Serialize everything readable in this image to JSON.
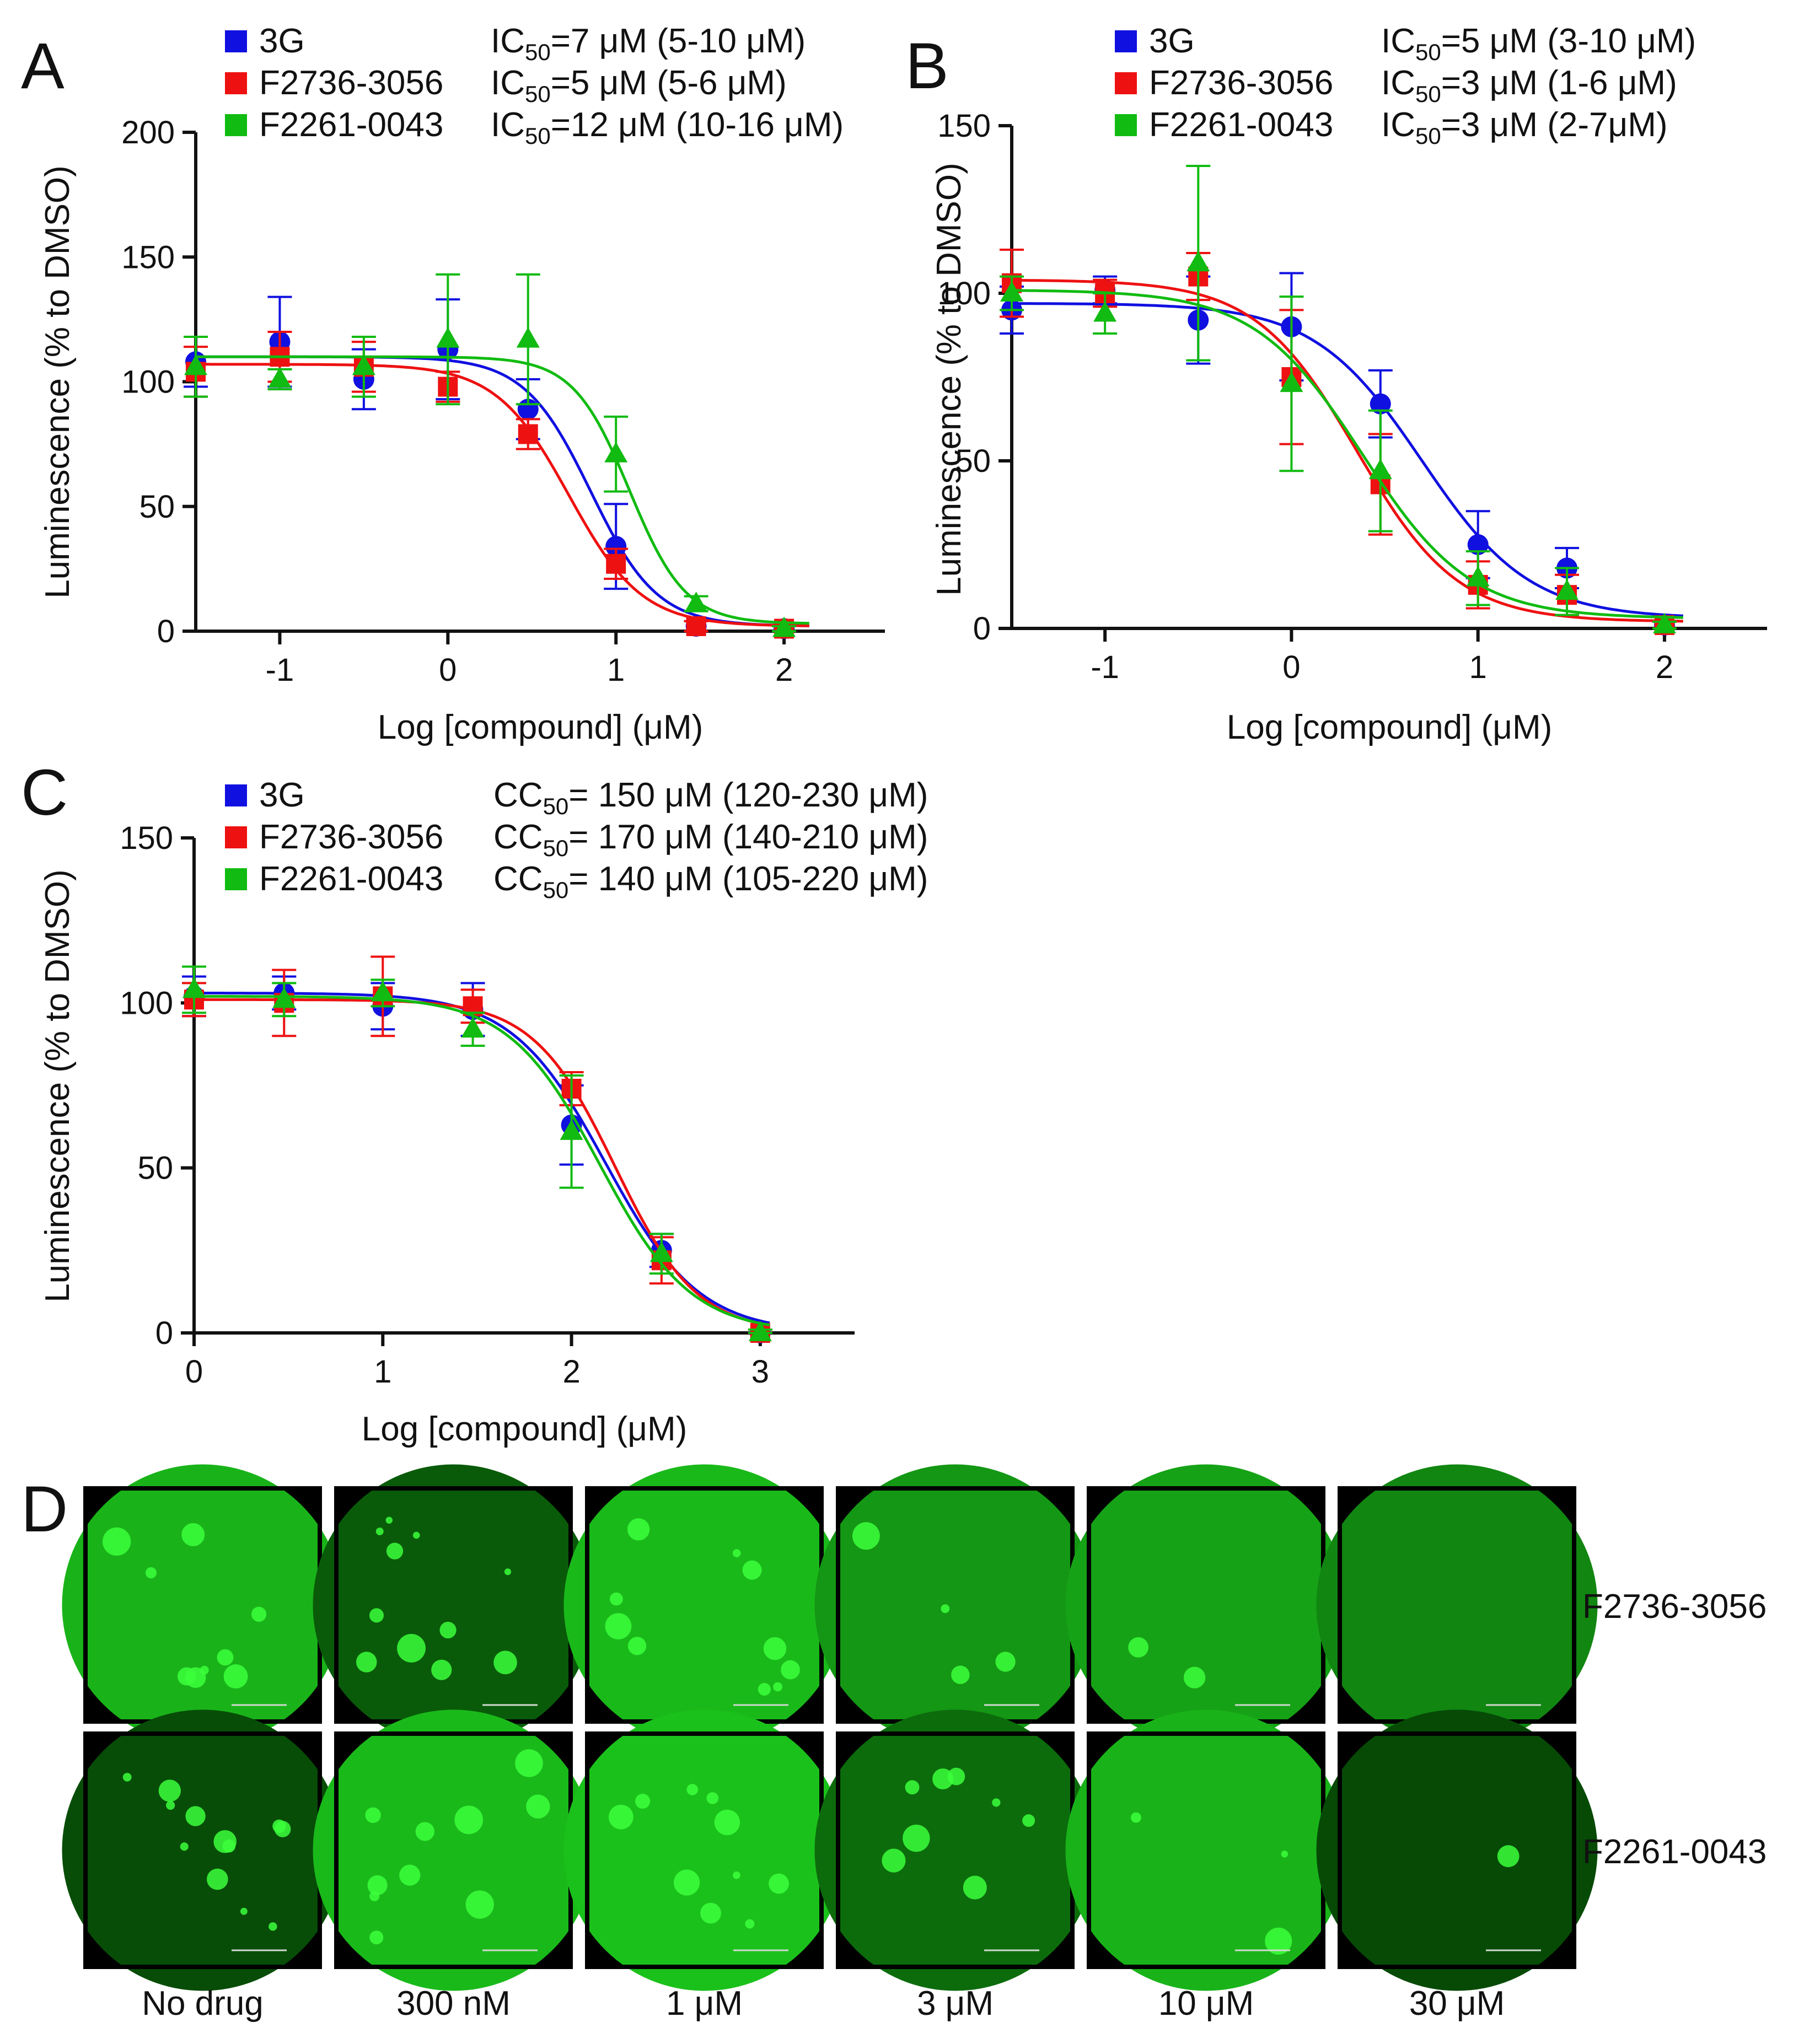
{
  "colors": {
    "3G": "#1010e0",
    "F2736-3056": "#ee1111",
    "F2261-0043": "#11bb11",
    "axis": "#111111"
  },
  "chart_data": [
    {
      "panel": "A",
      "type": "scatter",
      "xlabel": "Log [compound] (μM)",
      "ylabel": "Luminescence (% to DMSO)",
      "xlim": [
        -1.5,
        2.6
      ],
      "ylim": [
        0,
        200
      ],
      "xticks": [
        "-1",
        "0",
        "1",
        "2"
      ],
      "yticks": [
        "0",
        "50",
        "100",
        "150",
        "200"
      ],
      "grid": false,
      "legend_position": "top",
      "series": [
        {
          "name": "3G",
          "stat_label": "IC",
          "stat_sub": "50",
          "stat_value": "=7 μM (5-10 μM)",
          "marker": "circle",
          "curve": {
            "top": 110,
            "bottom": 2,
            "logEC50": 0.85,
            "hill": 2.2
          },
          "x": [
            -1.5,
            -1,
            -0.5,
            0,
            0.477,
            1,
            1.477,
            2
          ],
          "y": [
            108,
            116,
            101,
            113,
            89,
            34,
            2,
            1
          ],
          "err": [
            10,
            18,
            12,
            20,
            12,
            17,
            2,
            1
          ]
        },
        {
          "name": "F2736-3056",
          "stat_label": "IC",
          "stat_sub": "50",
          "stat_value": "=5 μM (5-6 μM)",
          "marker": "square",
          "curve": {
            "top": 107,
            "bottom": 2,
            "logEC50": 0.72,
            "hill": 2.0
          },
          "x": [
            -1.5,
            -1,
            -0.5,
            0,
            0.477,
            1,
            1.477,
            2
          ],
          "y": [
            104,
            110,
            106,
            98,
            79,
            27,
            2,
            1
          ],
          "err": [
            10,
            10,
            10,
            6,
            6,
            6,
            2,
            1
          ]
        },
        {
          "name": "F2261-0043",
          "stat_label": "IC",
          "stat_sub": "50",
          "stat_value": "=12 μM (10-16 μM)",
          "marker": "triangle",
          "curve": {
            "top": 110,
            "bottom": 3,
            "logEC50": 1.08,
            "hill": 2.6
          },
          "x": [
            -1.5,
            -1,
            -0.5,
            0,
            0.477,
            1,
            1.477,
            2
          ],
          "y": [
            106,
            101,
            106,
            117,
            117,
            71,
            11,
            1
          ],
          "err": [
            12,
            4,
            12,
            26,
            26,
            15,
            3,
            1
          ]
        }
      ]
    },
    {
      "panel": "B",
      "type": "scatter",
      "xlabel": "Log [compound] (μM)",
      "ylabel": "Luminescence (% to DMSO)",
      "xlim": [
        -1.5,
        2.55
      ],
      "ylim": [
        0,
        150
      ],
      "xticks": [
        "-1",
        "0",
        "1",
        "2"
      ],
      "yticks": [
        "0",
        "50",
        "100",
        "150"
      ],
      "grid": false,
      "legend_position": "top",
      "series": [
        {
          "name": "3G",
          "stat_label": "IC",
          "stat_sub": "50",
          "stat_value": "=5 μM (3-10 μM)",
          "marker": "circle",
          "curve": {
            "top": 97,
            "bottom": 3,
            "logEC50": 0.7,
            "hill": 1.5
          },
          "x": [
            -1.5,
            -1,
            -0.5,
            0,
            0.477,
            1,
            1.477,
            2
          ],
          "y": [
            95,
            101,
            92,
            90,
            67,
            25,
            18,
            1
          ],
          "err": [
            7,
            4,
            13,
            16,
            10,
            10,
            6,
            1
          ]
        },
        {
          "name": "F2736-3056",
          "stat_label": "IC",
          "stat_sub": "50",
          "stat_value": "=3 μM (1-6 μM)",
          "marker": "square",
          "curve": {
            "top": 104,
            "bottom": 2,
            "logEC50": 0.35,
            "hill": 1.6
          },
          "x": [
            -1.5,
            -1,
            -0.5,
            0,
            0.477,
            1,
            1.477,
            2
          ],
          "y": [
            103,
            100,
            105,
            75,
            43,
            13,
            10,
            1
          ],
          "err": [
            10,
            4,
            7,
            20,
            15,
            7,
            6,
            1
          ]
        },
        {
          "name": "F2261-0043",
          "stat_label": "IC",
          "stat_sub": "50",
          "stat_value": "=3 μM (2-7μM)",
          "marker": "triangle",
          "curve": {
            "top": 101,
            "bottom": 3,
            "logEC50": 0.38,
            "hill": 1.5
          },
          "x": [
            -1.5,
            -1,
            -0.5,
            0,
            0.477,
            1,
            1.477,
            2
          ],
          "y": [
            100,
            94,
            109,
            73,
            47,
            15,
            11,
            1
          ],
          "err": [
            5,
            6,
            29,
            26,
            18,
            8,
            7,
            1
          ]
        }
      ]
    },
    {
      "panel": "C",
      "type": "scatter",
      "xlabel": "Log [compound] (μM)",
      "ylabel": "Luminescence (% to DMSO)",
      "xlim": [
        0,
        3.5
      ],
      "ylim": [
        0,
        150
      ],
      "xticks": [
        "0",
        "1",
        "2",
        "3"
      ],
      "yticks": [
        "0",
        "50",
        "100",
        "150"
      ],
      "grid": false,
      "legend_position": "top",
      "series": [
        {
          "name": "3G",
          "stat_label": "CC",
          "stat_sub": "50",
          "stat_value": "= 150 μM (120-230 μM)",
          "marker": "circle",
          "curve": {
            "top": 103,
            "bottom": 0,
            "logEC50": 2.18,
            "hill": 1.75
          },
          "x": [
            0,
            0.477,
            1,
            1.477,
            2,
            2.477,
            3
          ],
          "y": [
            102,
            103,
            99,
            98,
            63,
            25,
            0
          ],
          "err": [
            6,
            5,
            7,
            8,
            12,
            5,
            1
          ]
        },
        {
          "name": "F2736-3056",
          "stat_label": "CC",
          "stat_sub": "50",
          "stat_value": "= 170 μM (140-210 μM)",
          "marker": "square",
          "curve": {
            "top": 101,
            "bottom": 0,
            "logEC50": 2.23,
            "hill": 2.0
          },
          "x": [
            0,
            0.477,
            1,
            1.477,
            2,
            2.477,
            3
          ],
          "y": [
            101,
            100,
            102,
            99,
            74,
            22,
            0
          ],
          "err": [
            5,
            10,
            12,
            5,
            5,
            7,
            1
          ]
        },
        {
          "name": "F2261-0043",
          "stat_label": "CC",
          "stat_sub": "50",
          "stat_value": "= 140 μM (105-220 μM)",
          "marker": "triangle",
          "curve": {
            "top": 102,
            "bottom": 0,
            "logEC50": 2.15,
            "hill": 1.8
          },
          "x": [
            0,
            0.477,
            1,
            1.477,
            2,
            2.477,
            3
          ],
          "y": [
            104,
            101,
            103,
            92,
            61,
            24,
            0
          ],
          "err": [
            7,
            5,
            4,
            5,
            17,
            6,
            1
          ]
        }
      ]
    }
  ],
  "panel_D": {
    "label": "D",
    "rows": [
      {
        "compound": "F2736-3056",
        "levels": [
          0.82,
          0.3,
          0.85,
          0.65,
          0.72,
          0.55
        ],
        "blobs": [
          9,
          11,
          10,
          4,
          2,
          0
        ]
      },
      {
        "compound": "F2261-0043",
        "levels": [
          0.22,
          0.85,
          0.9,
          0.4,
          0.82,
          0.2
        ],
        "blobs": [
          12,
          10,
          10,
          8,
          3,
          1
        ]
      }
    ],
    "concentrations": [
      "No drug",
      "300 nM",
      "1 μM",
      "3 μM",
      "10 μM",
      "30 μM"
    ]
  }
}
